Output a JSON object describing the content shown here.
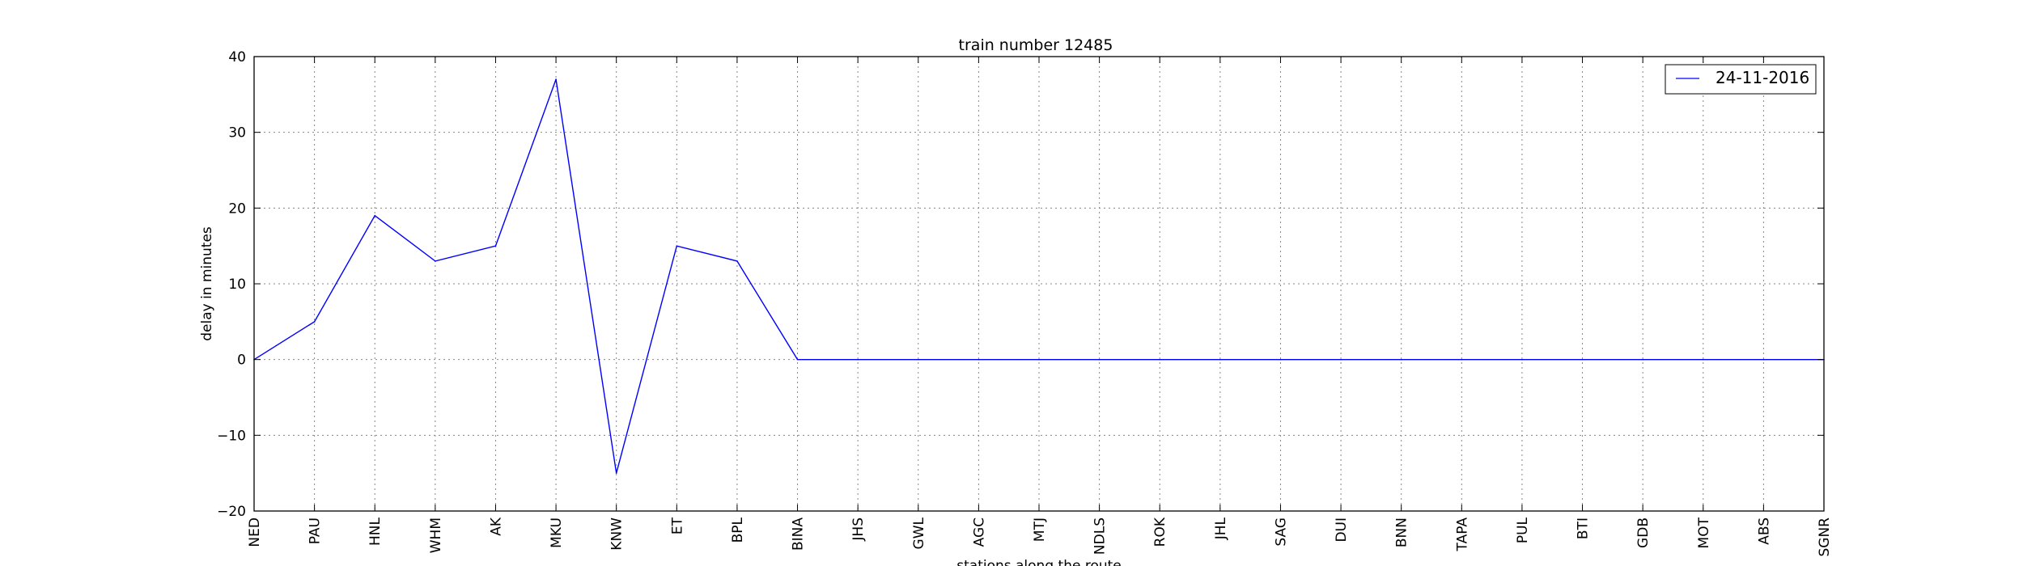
{
  "chart_data": {
    "type": "line",
    "title": "train number 12485",
    "xlabel": "stations along the route",
    "ylabel": "delay in minutes",
    "ylim": [
      -20,
      40
    ],
    "yticks": [
      -20,
      -10,
      0,
      10,
      20,
      30,
      40
    ],
    "grid": true,
    "legend_position": "top-right",
    "categories": [
      "NED",
      "PAU",
      "HNL",
      "WHM",
      "AK",
      "MKU",
      "KNW",
      "ET",
      "BPL",
      "BINA",
      "JHS",
      "GWL",
      "AGC",
      "MTJ",
      "NDLS",
      "ROK",
      "JHL",
      "SAG",
      "DUI",
      "BNN",
      "TAPA",
      "PUL",
      "BTI",
      "GDB",
      "MOT",
      "ABS",
      "SGNR"
    ],
    "series": [
      {
        "name": "24-11-2016",
        "color": "#0000ff",
        "values": [
          0,
          5,
          19,
          13,
          15,
          37,
          -15,
          15,
          13,
          0,
          0,
          0,
          0,
          0,
          0,
          0,
          0,
          0,
          0,
          0,
          0,
          0,
          0,
          0,
          0,
          0,
          0
        ]
      }
    ]
  }
}
